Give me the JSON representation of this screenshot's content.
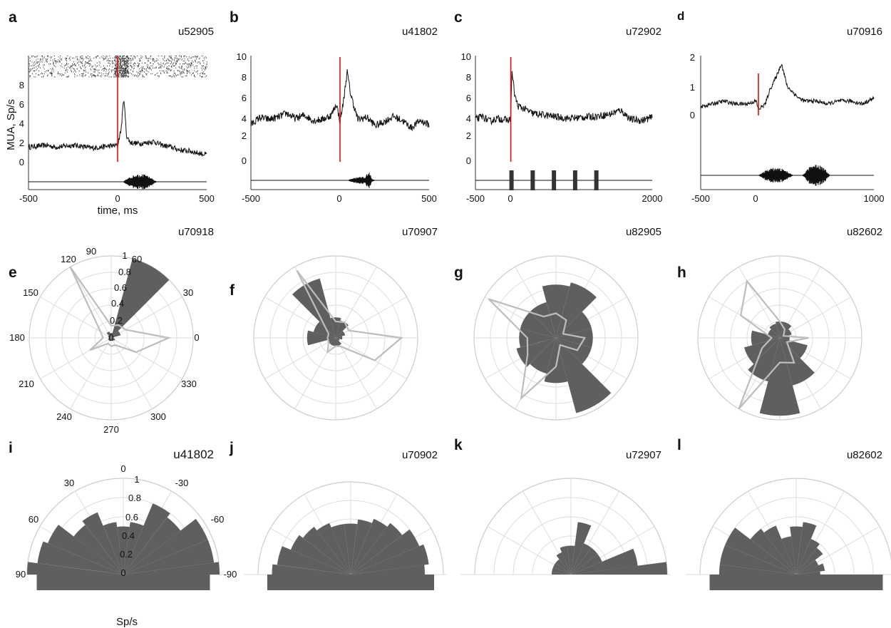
{
  "colors": {
    "trace": "#111111",
    "stim_line": "#dd1111",
    "wedge_fill": "#5f5f5f",
    "overlay_line": "#bdbdbd",
    "polar_grid": "#dddddd",
    "axis": "#333333"
  },
  "row1": [
    {
      "label": "a",
      "unit": "u52905",
      "xticks": [
        "-500",
        "0",
        "500"
      ],
      "yticks": [
        "0",
        "2",
        "4",
        "6",
        "8"
      ],
      "ylabel": "MUA, Sp/s",
      "xlabel": "time, ms",
      "stimulus": "burst"
    },
    {
      "label": "b",
      "unit": "u41802",
      "xticks": [
        "-500",
        "0",
        "500"
      ],
      "yticks": [
        "0",
        "2",
        "4",
        "6",
        "8",
        "10"
      ],
      "stimulus": "burst"
    },
    {
      "label": "c",
      "unit": "u72902",
      "xticks": [
        "-500",
        "0",
        "2000"
      ],
      "yticks": [
        "0",
        "2",
        "4",
        "6",
        "8",
        "10"
      ],
      "stimulus": "pulses"
    },
    {
      "label": "d",
      "unit": "u70916",
      "xticks": [
        "-500",
        "0",
        "1000"
      ],
      "yticks": [
        "0",
        "1",
        "2"
      ],
      "stimulus": "two-bursts"
    }
  ],
  "row2": [
    {
      "label": "e",
      "unit": "u70918",
      "angle_labels": [
        "90",
        "60",
        "30",
        "0",
        "330",
        "300",
        "270",
        "240",
        "210",
        "180",
        "150",
        "120"
      ],
      "radial_labels": [
        "0",
        "0.2",
        "0.4",
        "0.6",
        "0.8",
        "1"
      ]
    },
    {
      "label": "f",
      "unit": "u70907"
    },
    {
      "label": "g",
      "unit": "u82905"
    },
    {
      "label": "h",
      "unit": "u82602"
    }
  ],
  "row3": [
    {
      "label": "i",
      "unit": "u41802",
      "angle_labels": [
        "0",
        "-30",
        "-60",
        "-90",
        "30",
        "60",
        "90"
      ],
      "radial_labels": [
        "0",
        "0.2",
        "0.4",
        "0.6",
        "0.8",
        "1"
      ],
      "radial_unit": "Sp/s"
    },
    {
      "label": "j",
      "unit": "u70902"
    },
    {
      "label": "k",
      "unit": "u72907"
    },
    {
      "label": "l",
      "unit": "u82602"
    }
  ],
  "chart_data": [
    {
      "panel": "a",
      "type": "line",
      "title": "u52905",
      "xlabel": "time, ms",
      "ylabel": "MUA, Sp/s",
      "xlim": [
        -500,
        500
      ],
      "ylim": [
        -1.5,
        10
      ],
      "raster": true,
      "stimulus_onset_ms": 0,
      "series": [
        {
          "x": [
            -500,
            -450,
            -400,
            -350,
            -300,
            -250,
            -200,
            -150,
            -100,
            -50,
            0,
            20,
            35,
            50,
            70,
            100,
            150,
            200,
            250,
            300,
            350,
            400,
            450,
            500
          ],
          "y": [
            1.6,
            1.7,
            1.8,
            1.6,
            1.7,
            1.8,
            1.7,
            1.5,
            1.6,
            1.7,
            1.8,
            3.5,
            6.8,
            2.8,
            2.1,
            2.0,
            2.0,
            2.2,
            1.8,
            1.6,
            1.3,
            1.2,
            1.0,
            0.8
          ]
        }
      ]
    },
    {
      "panel": "b",
      "type": "line",
      "title": "u41802",
      "xlim": [
        -500,
        500
      ],
      "ylim": [
        -2.5,
        10
      ],
      "stimulus_onset_ms": 0,
      "series": [
        {
          "x": [
            -500,
            -450,
            -400,
            -350,
            -300,
            -250,
            -200,
            -150,
            -100,
            -50,
            -20,
            0,
            20,
            40,
            60,
            100,
            150,
            200,
            250,
            300,
            350,
            400,
            450,
            500
          ],
          "y": [
            3.5,
            4.2,
            4.0,
            4.2,
            4.6,
            4.1,
            4.4,
            3.9,
            4.0,
            4.4,
            5.5,
            3.8,
            5.8,
            8.6,
            6.4,
            4.0,
            4.2,
            3.4,
            3.8,
            4.3,
            3.9,
            3.2,
            3.9,
            3.5
          ]
        }
      ]
    },
    {
      "panel": "c",
      "type": "line",
      "title": "u72902",
      "xlim": [
        -500,
        2000
      ],
      "ylim": [
        -2.5,
        10
      ],
      "stimulus_onset_ms": 0,
      "series": [
        {
          "x": [
            -500,
            -400,
            -300,
            -200,
            -100,
            -20,
            0,
            15,
            30,
            60,
            100,
            200,
            300,
            400,
            600,
            800,
            1000,
            1200,
            1400,
            1550,
            1700,
            1850,
            2000
          ],
          "y": [
            4.0,
            4.3,
            3.8,
            4.1,
            4.0,
            3.9,
            4.2,
            8.7,
            7.8,
            6.2,
            5.3,
            5.0,
            4.6,
            4.5,
            4.3,
            4.1,
            4.2,
            4.3,
            4.5,
            4.9,
            4.0,
            3.9,
            4.2
          ]
        }
      ]
    },
    {
      "panel": "d",
      "type": "line",
      "title": "u70916",
      "xlim": [
        -500,
        1000
      ],
      "ylim": [
        -1.5,
        2.2
      ],
      "stimulus_onset_ms": 0,
      "series": [
        {
          "x": [
            -500,
            -400,
            -300,
            -200,
            -100,
            -20,
            0,
            60,
            100,
            150,
            200,
            250,
            300,
            350,
            400,
            500,
            600,
            700,
            800,
            900,
            1000
          ],
          "y": [
            0.3,
            0.4,
            0.5,
            0.4,
            0.4,
            0.5,
            0.2,
            0.4,
            0.9,
            1.3,
            1.8,
            1.0,
            0.8,
            0.6,
            0.5,
            0.5,
            0.4,
            0.5,
            0.5,
            0.4,
            0.6
          ]
        }
      ]
    },
    {
      "panel": "e",
      "type": "polar",
      "title": "u70918",
      "rlim": [
        0,
        1
      ],
      "angles_deg": [
        0,
        30,
        60,
        90,
        120,
        150,
        180,
        210,
        240,
        270,
        300,
        330
      ],
      "bars": [
        0.03,
        0.12,
        1.0,
        0.06,
        0.08,
        0.04,
        0.03,
        0.04,
        0.04,
        0.03,
        0.04,
        0.05
      ],
      "overlay": [
        0.7,
        0.2,
        0.18,
        0.15,
        1.0,
        0.15,
        0.1,
        0.3,
        0.08,
        0.1,
        0.1,
        0.35
      ]
    },
    {
      "panel": "f",
      "type": "polar",
      "title": "u70907",
      "rlim": [
        0,
        1
      ],
      "angles_deg": [
        0,
        30,
        60,
        90,
        120,
        150,
        180,
        210,
        240,
        270,
        300,
        330
      ],
      "bars": [
        0.08,
        0.12,
        0.22,
        0.25,
        0.75,
        0.28,
        0.35,
        0.1,
        0.1,
        0.1,
        0.1,
        0.05
      ],
      "overlay": [
        0.8,
        0.18,
        0.22,
        0.2,
        0.95,
        0.1,
        0.1,
        0.1,
        0.2,
        0.1,
        0.12,
        0.55
      ]
    },
    {
      "panel": "g",
      "type": "polar",
      "title": "u82905",
      "rlim": [
        0,
        1
      ],
      "angles_deg": [
        0,
        30,
        60,
        90,
        120,
        150,
        180,
        210,
        240,
        270,
        300,
        330
      ],
      "bars": [
        0.45,
        0.45,
        0.7,
        0.65,
        0.45,
        0.45,
        0.45,
        0.5,
        0.45,
        0.55,
        0.95,
        0.45
      ],
      "overlay": [
        0.35,
        0.1,
        0.25,
        0.3,
        0.3,
        0.95,
        0.35,
        0.4,
        0.85,
        0.35,
        0.1,
        0.3
      ]
    },
    {
      "panel": "h",
      "type": "polar",
      "title": "u82602",
      "rlim": [
        0,
        1
      ],
      "angles_deg": [
        0,
        30,
        60,
        90,
        120,
        150,
        180,
        210,
        240,
        270,
        300,
        330
      ],
      "bars": [
        0.12,
        0.15,
        0.2,
        0.2,
        0.18,
        0.15,
        0.35,
        0.45,
        0.55,
        0.95,
        0.6,
        0.35
      ],
      "overlay": [
        0.35,
        0.05,
        0.12,
        0.2,
        0.8,
        0.55,
        0.1,
        0.25,
        1.0,
        0.3,
        0.35,
        0.1
      ]
    },
    {
      "panel": "i",
      "type": "polar",
      "title": "u41802",
      "rlim": [
        0,
        1
      ],
      "radial_unit": "Sp/s",
      "angles_deg": [
        -90,
        -75,
        -60,
        -45,
        -30,
        -15,
        0,
        15,
        30,
        45,
        60,
        75,
        90
      ],
      "bars": [
        1.0,
        0.95,
        0.95,
        0.75,
        0.8,
        0.55,
        0.5,
        0.55,
        0.7,
        0.65,
        0.85,
        0.9,
        1.0
      ]
    },
    {
      "panel": "j",
      "type": "polar",
      "title": "u70902",
      "rlim": [
        0,
        1
      ],
      "angles_deg": [
        -90,
        -75,
        -60,
        -45,
        -30,
        -15,
        0,
        15,
        30,
        45,
        60,
        75,
        90
      ],
      "bars": [
        0.8,
        0.85,
        0.8,
        0.7,
        0.65,
        0.6,
        0.55,
        0.55,
        0.6,
        0.65,
        0.7,
        0.8,
        0.85
      ]
    },
    {
      "panel": "k",
      "type": "polar",
      "title": "u72907",
      "rlim": [
        0,
        1
      ],
      "angles_deg": [
        -90,
        -75,
        -60,
        -45,
        -30,
        -15,
        0,
        15,
        30,
        45,
        60,
        75,
        90
      ],
      "bars": [
        1.0,
        0.7,
        0.35,
        0.35,
        0.35,
        0.55,
        0.3,
        0.3,
        0.25,
        0.2,
        0.2,
        0.2,
        0.2
      ]
    },
    {
      "panel": "l",
      "type": "polar",
      "title": "u82602",
      "rlim": [
        0,
        1
      ],
      "angles_deg": [
        -90,
        -75,
        -60,
        -45,
        -30,
        -15,
        0,
        15,
        30,
        45,
        60,
        75,
        90
      ],
      "bars": [
        0.25,
        0.3,
        0.25,
        0.35,
        0.4,
        0.55,
        0.5,
        0.4,
        0.55,
        0.6,
        0.8,
        0.8,
        0.8
      ]
    }
  ]
}
